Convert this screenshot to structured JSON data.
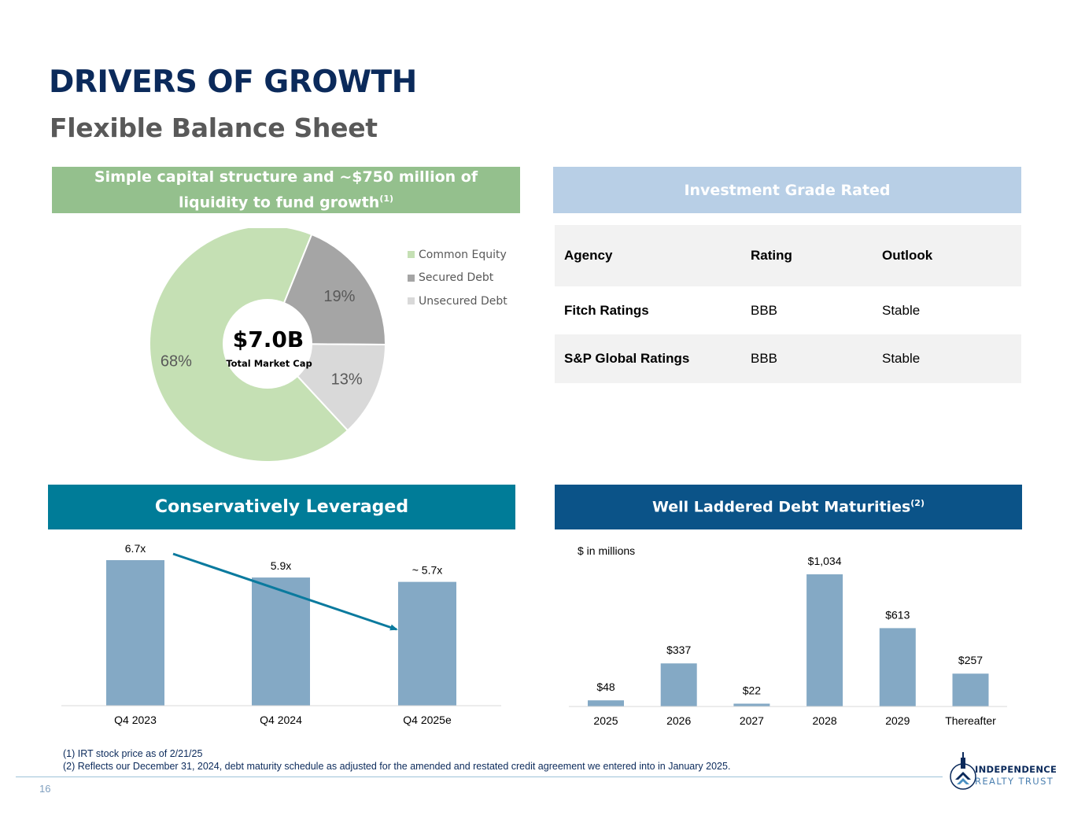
{
  "header": {
    "title": "DRIVERS OF GROWTH",
    "subtitle": "Flexible Balance Sheet"
  },
  "colors": {
    "navy": "#0b2a5b",
    "green_banner": "#94c08d",
    "blue_banner": "#b8cfe6",
    "teal_banner": "#007c98",
    "dark_blue_banner": "#0b5388",
    "bar_blue": "#84a9c5",
    "arrow_teal": "#0a7a9e",
    "equity_green": "#c5e0b4",
    "secured_gray": "#a5a5a5",
    "unsecured_gray": "#d9d9d9"
  },
  "capital": {
    "banner_text": "Simple capital structure and ~$750 million of liquidity to fund growth",
    "banner_sup": "(1)",
    "center_value": "$7.0B",
    "center_label": "Total Market Cap"
  },
  "ratings": {
    "banner_text": "Investment Grade Rated",
    "headers": [
      "Agency",
      "Rating",
      "Outlook"
    ],
    "rows": [
      {
        "agency": "Fitch Ratings",
        "rating": "BBB",
        "outlook": "Stable"
      },
      {
        "agency": "S&P Global Ratings",
        "rating": "BBB",
        "outlook": "Stable"
      }
    ]
  },
  "leverage": {
    "banner_text": "Conservatively Leveraged"
  },
  "maturities": {
    "banner_text": "Well Laddered Debt Maturities",
    "banner_sup": "(2)",
    "unit_note": "$ in millions"
  },
  "chart_data": [
    {
      "type": "pie",
      "title": "Simple capital structure and ~$750 million of liquidity to fund growth",
      "categories": [
        "Common Equity",
        "Secured Debt",
        "Unsecured Debt"
      ],
      "values": [
        68,
        19,
        13
      ],
      "labels": [
        "68%",
        "19%",
        "13%"
      ],
      "legend": "right"
    },
    {
      "type": "bar",
      "title": "Conservatively Leveraged",
      "categories": [
        "Q4 2023",
        "Q4 2024",
        "Q4 2025e"
      ],
      "values": [
        6.7,
        5.9,
        5.7
      ],
      "labels": [
        "6.7x",
        "5.9x",
        "~ 5.7x"
      ],
      "ylim": [
        0,
        7.5
      ],
      "annotation": "downward trend arrow from Q4 2023 to Q4 2025e"
    },
    {
      "type": "bar",
      "title": "Well Laddered Debt Maturities",
      "ylabel": "$ in millions",
      "categories": [
        "2025",
        "2026",
        "2027",
        "2028",
        "2029",
        "Thereafter"
      ],
      "values": [
        48,
        337,
        22,
        1034,
        613,
        257
      ],
      "labels": [
        "$48",
        "$337",
        "$22",
        "$1,034",
        "$613",
        "$257"
      ],
      "ylim": [
        0,
        1034
      ]
    }
  ],
  "footnotes": [
    "(1) IRT stock price as of 2/21/25",
    "(2) Reflects our December 31, 2024, debt maturity schedule as adjusted for the amended and restated credit agreement we entered into in January 2025."
  ],
  "footer": {
    "page_number": "16",
    "logo_line1": "INDEPENDENCE",
    "logo_line2": "REALTY TRUST"
  }
}
